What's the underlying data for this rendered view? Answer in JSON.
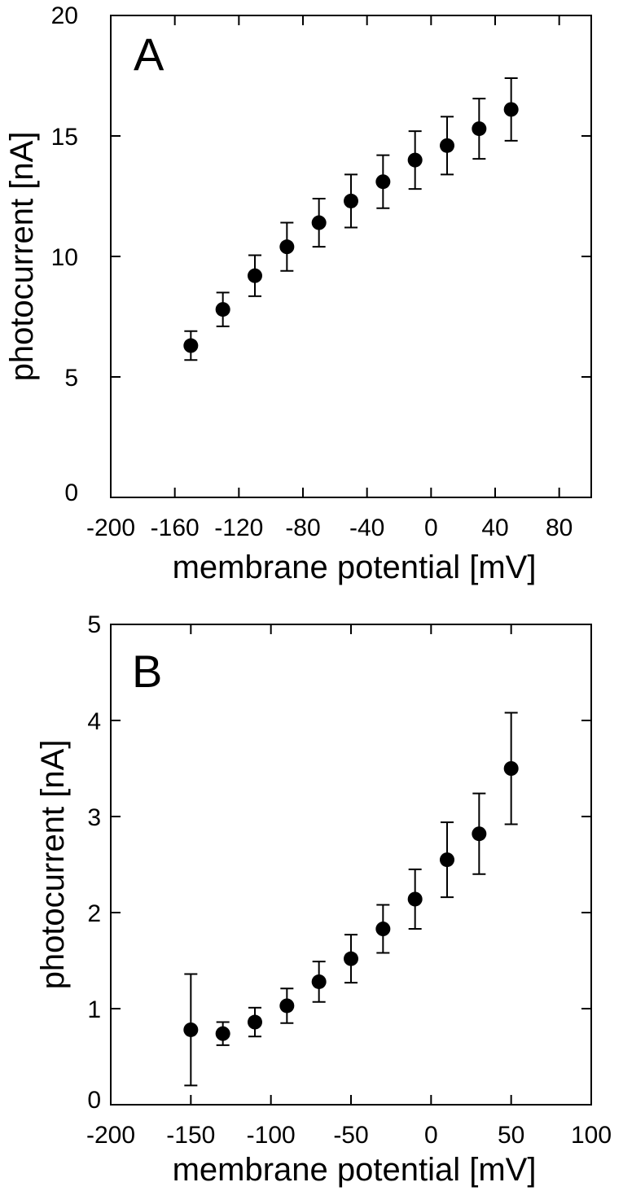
{
  "chart_data": [
    {
      "type": "scatter",
      "panel_label": "A",
      "xlabel": "membrane potential [mV]",
      "ylabel": "photocurrent [nA]",
      "xlim": [
        -200,
        100
      ],
      "ylim": [
        0,
        20
      ],
      "xticks": [
        -200,
        -160,
        -120,
        -80,
        -40,
        0,
        40,
        80
      ],
      "yticks": [
        0,
        5,
        10,
        15,
        20
      ],
      "xtick_labels": [
        "-200",
        "-160",
        "-120",
        "-80",
        "-40",
        "0",
        "40",
        "80"
      ],
      "ytick_labels": [
        "0",
        "5",
        "10",
        "15",
        "20"
      ],
      "grid": false,
      "legend": "none",
      "marker": "filled-circle",
      "series": [
        {
          "x": [
            -150,
            -130,
            -110,
            -90,
            -70,
            -50,
            -30,
            -10,
            10,
            30,
            50
          ],
          "y": [
            6.3,
            7.8,
            9.2,
            10.4,
            11.4,
            12.3,
            13.1,
            14.0,
            14.6,
            15.3,
            16.1
          ],
          "yerr": [
            0.6,
            0.7,
            0.85,
            1.0,
            1.0,
            1.1,
            1.1,
            1.2,
            1.2,
            1.25,
            1.3
          ]
        }
      ]
    },
    {
      "type": "scatter",
      "panel_label": "B",
      "xlabel": "membrane potential [mV]",
      "ylabel": "photocurrent [nA]",
      "xlim": [
        -200,
        100
      ],
      "ylim": [
        0,
        5
      ],
      "xticks": [
        -200,
        -150,
        -100,
        -50,
        0,
        50,
        100
      ],
      "yticks": [
        0,
        1,
        2,
        3,
        4,
        5
      ],
      "xtick_labels": [
        "-200",
        "-150",
        "-100",
        "-50",
        "0",
        "50",
        "100"
      ],
      "ytick_labels": [
        "0",
        "1",
        "2",
        "3",
        "4",
        "5"
      ],
      "grid": false,
      "legend": "none",
      "marker": "filled-circle",
      "series": [
        {
          "x": [
            -150,
            -130,
            -110,
            -90,
            -70,
            -50,
            -30,
            -10,
            10,
            30,
            50
          ],
          "y": [
            0.78,
            0.74,
            0.86,
            1.03,
            1.28,
            1.52,
            1.83,
            2.14,
            2.55,
            2.82,
            3.5
          ],
          "yerr": [
            0.58,
            0.12,
            0.15,
            0.18,
            0.21,
            0.25,
            0.25,
            0.31,
            0.39,
            0.42,
            0.58
          ]
        }
      ]
    }
  ]
}
